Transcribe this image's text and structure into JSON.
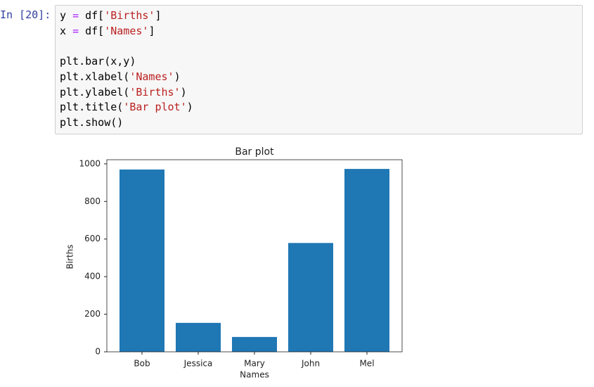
{
  "prompt": "In [20]:",
  "code": [
    [
      "y = df['Births']",
      "x = df['Names']"
    ],
    [
      "plt.bar(x,y)",
      "plt.xlabel('Names')",
      "plt.ylabel('Births')",
      "plt.title('Bar plot')",
      "plt.show()"
    ]
  ],
  "chart_data": {
    "type": "bar",
    "title": "Bar plot",
    "x_label": "Names",
    "y_label": "Births",
    "categories": [
      "Bob",
      "Jessica",
      "Mary",
      "John",
      "Mel"
    ],
    "values": [
      970,
      154,
      79,
      579,
      973
    ],
    "color": "#1f77b4",
    "ylim": [
      0,
      1022
    ],
    "yticks": [
      0,
      200,
      400,
      600,
      800,
      1000
    ],
    "grid": false
  }
}
